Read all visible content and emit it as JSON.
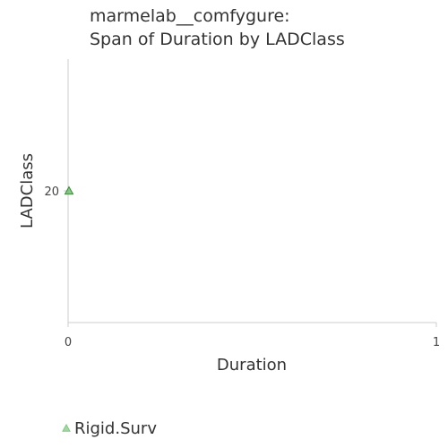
{
  "chart_data": {
    "type": "scatter",
    "title_lines": [
      "marmelab__comfygure:",
      "Span of Duration by LADClass"
    ],
    "xlabel": "Duration",
    "ylabel": "LADClass",
    "x_ticks": [
      "0",
      "1"
    ],
    "xlim": [
      0,
      1
    ],
    "y_ticks": [
      "20"
    ],
    "y_tick_values": [
      20
    ],
    "ylim": [
      0,
      40
    ],
    "grid": false,
    "legend_position": "bottom-left",
    "series": [
      {
        "name": "Rigid.Surv",
        "marker": "triangle",
        "color": "#5cb85c",
        "points": [
          {
            "x": 0,
            "y": 20
          }
        ]
      }
    ]
  }
}
